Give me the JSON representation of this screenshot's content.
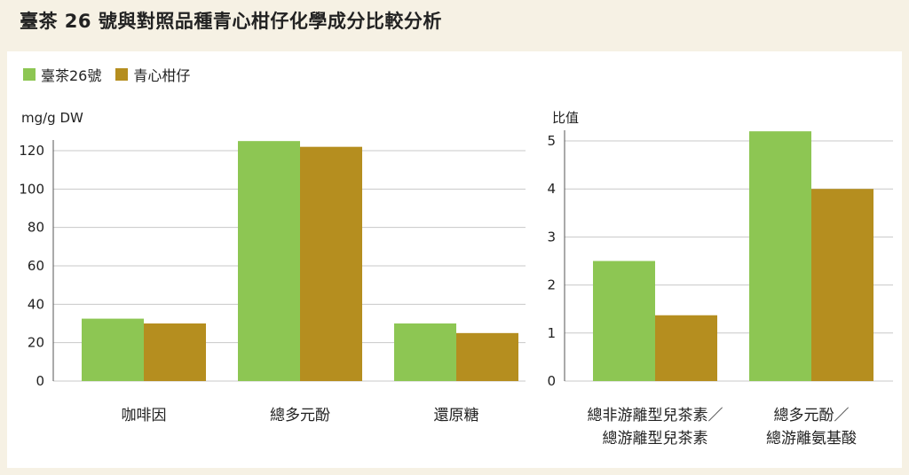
{
  "title": "臺茶 26 號與對照品種青心柑仔化學成分比較分析",
  "colors": {
    "series1": "#8dc653",
    "series2": "#b58e1f",
    "grid": "#c8c8c8",
    "axis": "#555555"
  },
  "legend": [
    {
      "label": "臺茶26號"
    },
    {
      "label": "青心柑仔"
    }
  ],
  "chart_data": [
    {
      "type": "bar",
      "ylabel": "mg/g DW",
      "ylim": [
        0,
        120
      ],
      "yticks": [
        0,
        20,
        40,
        60,
        80,
        100,
        120
      ],
      "categories": [
        "咖啡因",
        "總多元酚",
        "還原糖"
      ],
      "series": [
        {
          "name": "臺茶26號",
          "values": [
            32.5,
            125,
            30
          ]
        },
        {
          "name": "青心柑仔",
          "values": [
            30,
            122,
            25
          ]
        }
      ]
    },
    {
      "type": "bar",
      "ylabel": "比值",
      "ylim": [
        0,
        5
      ],
      "yticks": [
        0,
        1,
        2,
        3,
        4,
        5
      ],
      "categories": [
        "總非游離型兒茶素／總游離型兒茶素",
        "總多元酚／總游離氨基酸"
      ],
      "category_lines": [
        [
          "總非游離型兒茶素／",
          "總游離型兒茶素"
        ],
        [
          "總多元酚／",
          "總游離氨基酸"
        ]
      ],
      "series": [
        {
          "name": "臺茶26號",
          "values": [
            2.5,
            5.2
          ]
        },
        {
          "name": "青心柑仔",
          "values": [
            1.37,
            4.0
          ]
        }
      ]
    }
  ]
}
